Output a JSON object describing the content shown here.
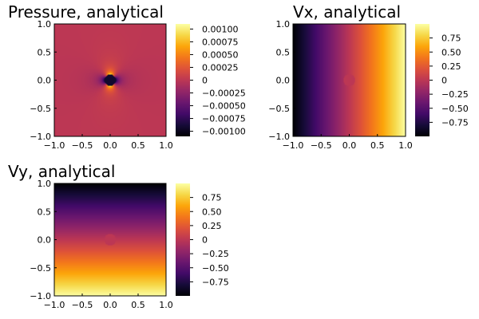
{
  "chart_data": [
    {
      "type": "heatmap",
      "title": "Pressure, analytical",
      "xlim": [
        -1.0,
        1.0
      ],
      "ylim": [
        -1.0,
        1.0
      ],
      "x_ticks": [
        "−1.0",
        "−0.5",
        "0.0",
        "0.5",
        "1.0"
      ],
      "y_ticks": [
        "1.0",
        "0.5",
        "0.0",
        "−0.5",
        "−1.0"
      ],
      "colorbar": {
        "range": [
          -0.0011,
          0.0011
        ],
        "ticks": [
          {
            "value": 0.001,
            "label": "0.00100"
          },
          {
            "value": 0.00075,
            "label": "0.00075"
          },
          {
            "value": 0.0005,
            "label": "0.00050"
          },
          {
            "value": 0.00025,
            "label": "0.00025"
          },
          {
            "value": 0.0,
            "label": "0"
          },
          {
            "value": -0.00025,
            "label": "−0.00025"
          },
          {
            "value": -0.0005,
            "label": "−0.00050"
          },
          {
            "value": -0.00075,
            "label": "−0.00075"
          },
          {
            "value": -0.001,
            "label": "−0.00100"
          }
        ]
      },
      "colormap": "inferno",
      "field": "pressure-dipole",
      "inclusion_radius": 0.1
    },
    {
      "type": "heatmap",
      "title": "Vx, analytical",
      "xlim": [
        -1.0,
        1.0
      ],
      "ylim": [
        -1.0,
        1.0
      ],
      "x_ticks": [
        "−1.0",
        "−0.5",
        "0.0",
        "0.5",
        "1.0"
      ],
      "y_ticks": [
        "1.0",
        "0.5",
        "0.0",
        "−0.5",
        "−1.0"
      ],
      "colorbar": {
        "range": [
          -1.0,
          1.0
        ],
        "ticks": [
          {
            "value": 0.75,
            "label": "0.75"
          },
          {
            "value": 0.5,
            "label": "0.50"
          },
          {
            "value": 0.25,
            "label": "0.25"
          },
          {
            "value": 0.0,
            "label": "0"
          },
          {
            "value": -0.25,
            "label": "−0.25"
          },
          {
            "value": -0.5,
            "label": "−0.50"
          },
          {
            "value": -0.75,
            "label": "−0.75"
          }
        ]
      },
      "colormap": "inferno",
      "field": "vx",
      "inclusion_radius": 0.1
    },
    {
      "type": "heatmap",
      "title": "Vy, analytical",
      "xlim": [
        -1.0,
        1.0
      ],
      "ylim": [
        -1.0,
        1.0
      ],
      "x_ticks": [
        "−1.0",
        "−0.5",
        "0.0",
        "0.5",
        "1.0"
      ],
      "y_ticks": [
        "1.0",
        "0.5",
        "0.0",
        "−0.5",
        "−1.0"
      ],
      "colorbar": {
        "range": [
          -1.0,
          1.0
        ],
        "ticks": [
          {
            "value": 0.75,
            "label": "0.75"
          },
          {
            "value": 0.5,
            "label": "0.50"
          },
          {
            "value": 0.25,
            "label": "0.25"
          },
          {
            "value": 0.0,
            "label": "0"
          },
          {
            "value": -0.25,
            "label": "−0.25"
          },
          {
            "value": -0.5,
            "label": "−0.50"
          },
          {
            "value": -0.75,
            "label": "−0.75"
          }
        ]
      },
      "colormap": "inferno",
      "field": "vy",
      "inclusion_radius": 0.1
    }
  ]
}
